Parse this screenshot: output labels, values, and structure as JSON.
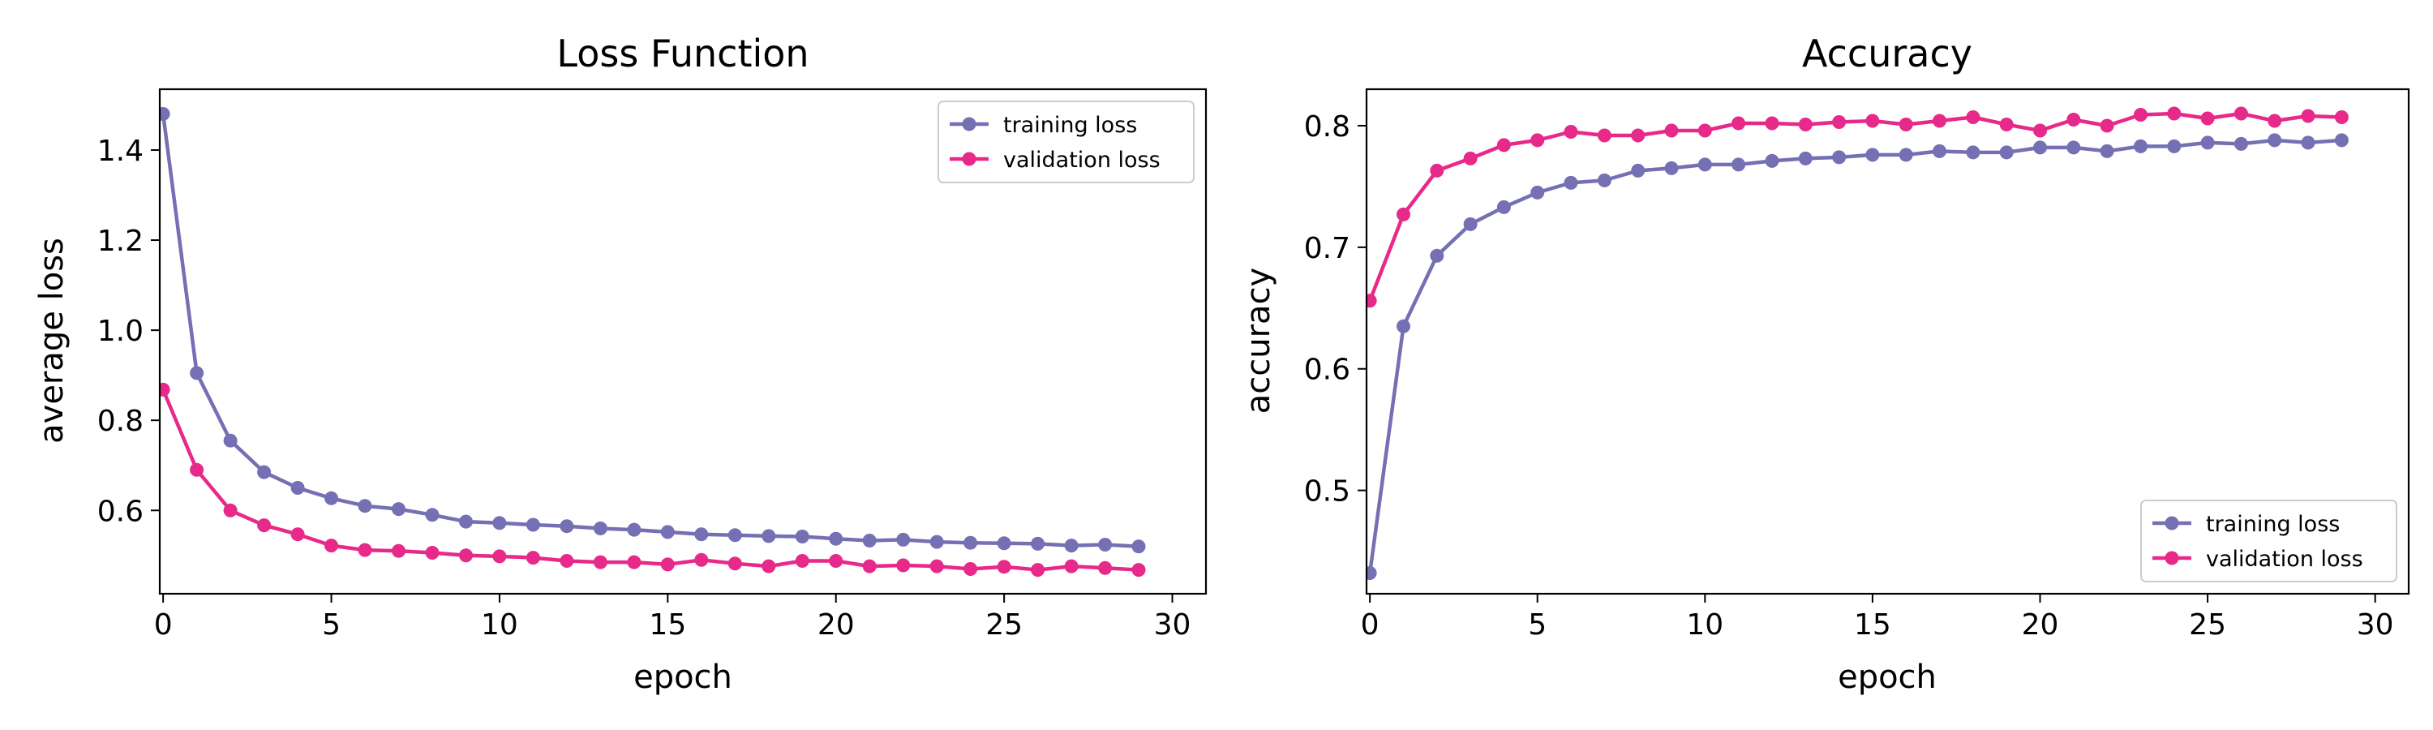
{
  "chart_data": [
    {
      "type": "line",
      "title": "Loss Function",
      "xlabel": "epoch",
      "ylabel": "average loss",
      "xlim": [
        -0.1,
        31
      ],
      "ylim": [
        0.415,
        1.535
      ],
      "xticks": [
        0,
        5,
        10,
        15,
        20,
        25,
        30
      ],
      "yticks": [
        0.6,
        0.8,
        1.0,
        1.2,
        1.4
      ],
      "ytick_decimals": 1,
      "grid": false,
      "legend": "top-right",
      "x": [
        0,
        1,
        2,
        3,
        4,
        5,
        6,
        7,
        8,
        9,
        10,
        11,
        12,
        13,
        14,
        15,
        16,
        17,
        18,
        19,
        20,
        21,
        22,
        23,
        24,
        25,
        26,
        27,
        28,
        29
      ],
      "series": [
        {
          "name": "training loss",
          "color": "#7570b3",
          "values": [
            1.48,
            0.905,
            0.755,
            0.685,
            0.65,
            0.627,
            0.61,
            0.603,
            0.59,
            0.575,
            0.572,
            0.568,
            0.565,
            0.56,
            0.557,
            0.552,
            0.547,
            0.545,
            0.543,
            0.542,
            0.537,
            0.533,
            0.535,
            0.53,
            0.528,
            0.527,
            0.526,
            0.522,
            0.524,
            0.52
          ]
        },
        {
          "name": "validation loss",
          "color": "#e7298a",
          "values": [
            0.868,
            0.69,
            0.6,
            0.567,
            0.547,
            0.522,
            0.512,
            0.51,
            0.506,
            0.5,
            0.498,
            0.495,
            0.488,
            0.485,
            0.485,
            0.48,
            0.49,
            0.482,
            0.476,
            0.488,
            0.488,
            0.476,
            0.478,
            0.476,
            0.47,
            0.475,
            0.468,
            0.476,
            0.472,
            0.468
          ]
        }
      ]
    },
    {
      "type": "line",
      "title": "Accuracy",
      "xlabel": "epoch",
      "ylabel": "accuracy",
      "xlim": [
        -0.1,
        31
      ],
      "ylim": [
        0.415,
        0.83
      ],
      "xticks": [
        0,
        5,
        10,
        15,
        20,
        25,
        30
      ],
      "yticks": [
        0.5,
        0.6,
        0.7,
        0.8
      ],
      "ytick_decimals": 1,
      "grid": false,
      "legend": "bottom-right",
      "x": [
        0,
        1,
        2,
        3,
        4,
        5,
        6,
        7,
        8,
        9,
        10,
        11,
        12,
        13,
        14,
        15,
        16,
        17,
        18,
        19,
        20,
        21,
        22,
        23,
        24,
        25,
        26,
        27,
        28,
        29
      ],
      "series": [
        {
          "name": "training loss",
          "color": "#7570b3",
          "values": [
            0.432,
            0.635,
            0.693,
            0.719,
            0.733,
            0.745,
            0.753,
            0.755,
            0.763,
            0.765,
            0.768,
            0.768,
            0.771,
            0.773,
            0.774,
            0.776,
            0.776,
            0.779,
            0.778,
            0.778,
            0.782,
            0.782,
            0.779,
            0.783,
            0.783,
            0.786,
            0.785,
            0.788,
            0.786,
            0.788
          ]
        },
        {
          "name": "validation loss",
          "color": "#e7298a",
          "values": [
            0.656,
            0.727,
            0.763,
            0.773,
            0.784,
            0.788,
            0.795,
            0.792,
            0.792,
            0.796,
            0.796,
            0.802,
            0.802,
            0.801,
            0.803,
            0.804,
            0.801,
            0.804,
            0.807,
            0.801,
            0.796,
            0.805,
            0.8,
            0.809,
            0.81,
            0.806,
            0.81,
            0.804,
            0.808,
            0.807
          ]
        }
      ]
    }
  ]
}
